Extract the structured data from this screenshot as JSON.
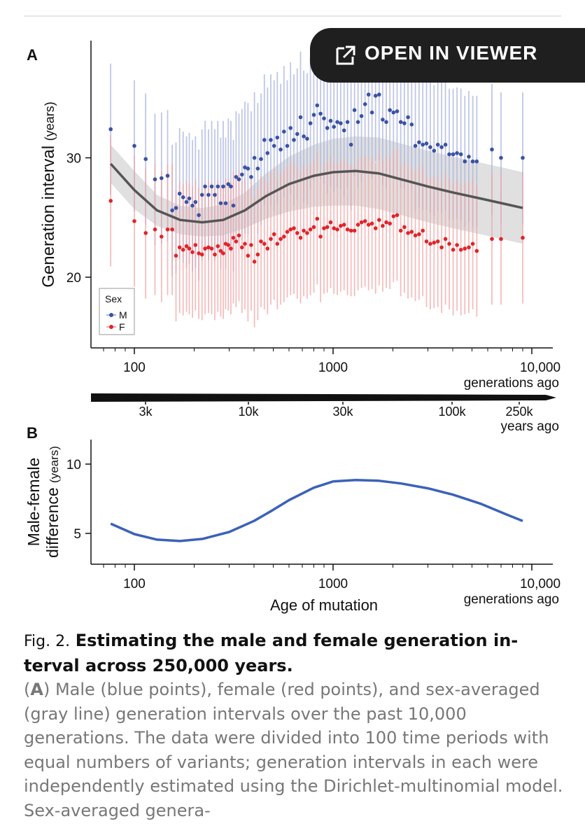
{
  "viewer_button": {
    "label": "OPEN IN VIEWER",
    "icon": "open-external-icon"
  },
  "colors": {
    "male": "#3a52a3",
    "female": "#e0242a",
    "fit": "#555555",
    "band": "#cfcfcf",
    "diff": "#3b62b8"
  },
  "chart_data": [
    {
      "panel": "A",
      "type": "scatter",
      "ylabel": "Generation interval",
      "ylabel_unit": "(years)",
      "xlabel": "generations ago",
      "x_scale": "log",
      "xlim": [
        65,
        12000
      ],
      "ylim": [
        14,
        38
      ],
      "xticks": [
        100,
        1000,
        10000
      ],
      "xtick_labels": [
        "100",
        "1000",
        "10,000"
      ],
      "yticks": [
        20,
        30
      ],
      "ytick_labels": [
        "20",
        "30"
      ],
      "legend": {
        "title": "Sex",
        "entries": [
          "M",
          "F"
        ],
        "position": "bottom-left"
      },
      "series": [
        {
          "name": "M",
          "x": [
            76,
            100,
            114,
            127,
            137,
            147,
            155,
            162,
            169,
            176,
            183,
            189,
            196,
            203,
            211,
            219,
            227,
            236,
            245,
            254,
            263,
            272,
            280,
            288,
            297,
            306,
            315,
            325,
            336,
            348,
            360,
            373,
            387,
            402,
            418,
            434,
            451,
            468,
            486,
            505,
            524,
            545,
            566,
            588,
            611,
            635,
            660,
            686,
            712,
            740,
            769,
            800,
            832,
            865,
            900,
            935,
            972,
            1010,
            1050,
            1092,
            1136,
            1182,
            1231,
            1282,
            1335,
            1390,
            1448,
            1508,
            1570,
            1636,
            1705,
            1777,
            1852,
            1931,
            2013,
            2099,
            2190,
            2284,
            2383,
            2486,
            2594,
            2708,
            2827,
            2952,
            3083,
            3221,
            3365,
            3517,
            3676,
            3843,
            4019,
            4204,
            4398,
            4603,
            4819,
            5046,
            5285,
            6300,
            7000,
            9000
          ],
          "y": [
            32.4,
            31.0,
            29.9,
            28.2,
            28.3,
            28.5,
            25.6,
            25.8,
            27.0,
            26.7,
            26.3,
            26.6,
            26.0,
            26.3,
            25.2,
            26.9,
            27.6,
            26.9,
            27.6,
            26.9,
            27.6,
            26.2,
            27.6,
            26.2,
            27.8,
            27.6,
            26.0,
            28.4,
            28.2,
            28.6,
            29.2,
            29.1,
            28.4,
            30.0,
            29.1,
            29.9,
            31.5,
            30.4,
            31.5,
            31.0,
            31.7,
            30.7,
            32.2,
            31.0,
            32.5,
            31.5,
            32.0,
            33.4,
            31.8,
            31.6,
            32.9,
            33.6,
            34.4,
            33.7,
            33.3,
            32.5,
            33.1,
            32.6,
            33.0,
            32.9,
            32.3,
            33.0,
            31.1,
            34.0,
            33.0,
            33.5,
            34.5,
            35.3,
            33.8,
            35.2,
            35.3,
            33.2,
            33.0,
            34.0,
            33.8,
            33.9,
            33.0,
            32.9,
            33.4,
            32.8,
            31.0,
            31.3,
            31.1,
            31.2,
            30.9,
            30.6,
            31.1,
            30.9,
            31.1,
            30.3,
            30.3,
            30.4,
            30.3,
            29.7,
            30.1,
            29.7,
            29.7,
            30.7,
            30.0,
            30.0
          ],
          "err": 5.5
        },
        {
          "name": "F",
          "x": [
            76,
            100,
            114,
            127,
            137,
            147,
            155,
            162,
            169,
            176,
            183,
            189,
            196,
            203,
            211,
            219,
            227,
            236,
            245,
            254,
            263,
            272,
            280,
            288,
            297,
            306,
            315,
            325,
            336,
            348,
            360,
            373,
            387,
            402,
            418,
            434,
            451,
            468,
            486,
            505,
            524,
            545,
            566,
            588,
            611,
            635,
            660,
            686,
            712,
            740,
            769,
            800,
            832,
            865,
            900,
            935,
            972,
            1010,
            1050,
            1092,
            1136,
            1182,
            1231,
            1282,
            1335,
            1390,
            1448,
            1508,
            1570,
            1636,
            1705,
            1777,
            1852,
            1931,
            2013,
            2099,
            2190,
            2284,
            2383,
            2486,
            2594,
            2708,
            2827,
            2952,
            3083,
            3221,
            3365,
            3517,
            3676,
            3843,
            4019,
            4204,
            4398,
            4603,
            4819,
            5046,
            5285,
            6300,
            7000,
            9000
          ],
          "y": [
            26.4,
            24.7,
            23.7,
            24.0,
            23.4,
            24.0,
            24.0,
            21.8,
            22.5,
            22.3,
            22.6,
            22.4,
            22.1,
            22.7,
            22.0,
            21.9,
            22.4,
            22.5,
            22.4,
            21.9,
            22.6,
            22.2,
            22.0,
            22.8,
            22.7,
            22.4,
            23.3,
            23.0,
            23.5,
            22.5,
            22.8,
            21.8,
            22.7,
            21.3,
            21.9,
            23.0,
            22.8,
            22.4,
            23.2,
            23.6,
            22.8,
            23.2,
            23.4,
            23.8,
            24.0,
            24.1,
            23.7,
            23.3,
            23.9,
            23.7,
            24.0,
            24.2,
            24.9,
            23.4,
            24.1,
            24.2,
            24.6,
            24.1,
            24.0,
            24.3,
            24.4,
            24.0,
            23.9,
            23.9,
            24.4,
            24.6,
            24.7,
            24.4,
            24.5,
            24.1,
            24.8,
            24.3,
            24.6,
            24.5,
            25.1,
            25.2,
            23.9,
            24.2,
            23.7,
            23.8,
            23.5,
            23.6,
            23.9,
            23.0,
            22.8,
            22.9,
            23.0,
            22.5,
            23.2,
            22.8,
            22.3,
            22.7,
            22.3,
            22.4,
            22.5,
            22.8,
            22.2,
            23.2,
            23.2,
            23.3
          ],
          "err": 5.5
        }
      ],
      "fit": {
        "name": "Sex-averaged",
        "x": [
          76,
          100,
          130,
          170,
          220,
          280,
          360,
          460,
          600,
          800,
          1000,
          1300,
          1700,
          2200,
          3000,
          4000,
          5500,
          7500,
          9000
        ],
        "y": [
          29.5,
          27.3,
          25.6,
          24.8,
          24.6,
          24.8,
          25.6,
          26.8,
          27.8,
          28.5,
          28.8,
          28.9,
          28.7,
          28.2,
          27.6,
          27.1,
          26.6,
          26.1,
          25.8
        ],
        "band": [
          1.6,
          1.6,
          1.3,
          1.2,
          1.2,
          1.3,
          1.5,
          1.9,
          2.3,
          2.6,
          2.8,
          2.9,
          3.0,
          3.0,
          3.0,
          3.0,
          3.0,
          3.0,
          3.0
        ]
      },
      "time_bar": {
        "ticks": [
          "3k",
          "10k",
          "30k",
          "100k",
          "250k"
        ],
        "unit": "years ago"
      }
    },
    {
      "panel": "B",
      "type": "line",
      "ylabel": "Male-female",
      "ylabel2": "difference",
      "ylabel_unit": "(years)",
      "xlabel": "Age of mutation",
      "xlabel_unit": "generations ago",
      "x_scale": "log",
      "xlim": [
        65,
        12000
      ],
      "ylim": [
        3.5,
        11
      ],
      "xticks": [
        100,
        1000,
        10000
      ],
      "xtick_labels": [
        "100",
        "1000",
        "10,000"
      ],
      "yticks": [
        5,
        10
      ],
      "ytick_labels": [
        "5",
        "10"
      ],
      "series": [
        {
          "name": "Male-female difference",
          "x": [
            76,
            100,
            130,
            170,
            220,
            300,
            400,
            500,
            600,
            800,
            1000,
            1300,
            1700,
            2200,
            3000,
            4000,
            5500,
            7500,
            9000
          ],
          "y": [
            5.7,
            4.95,
            4.55,
            4.45,
            4.6,
            5.1,
            5.9,
            6.7,
            7.4,
            8.3,
            8.75,
            8.85,
            8.8,
            8.6,
            8.25,
            7.8,
            7.15,
            6.35,
            5.9
          ]
        }
      ]
    }
  ],
  "caption": {
    "fig": "Fig. 2.",
    "title": "Estimating the male and female generation in-terval across 250,000 years.",
    "panel_a": "A",
    "body": ") Male (blue points), female (red points), and sex-averaged (gray line) generation intervals over the past 10,000 generations. The data were divided into 100 time periods with equal numbers of variants; generation intervals in each were independently estimated using the Dirichlet-multinomial model. Sex-averaged genera-"
  }
}
